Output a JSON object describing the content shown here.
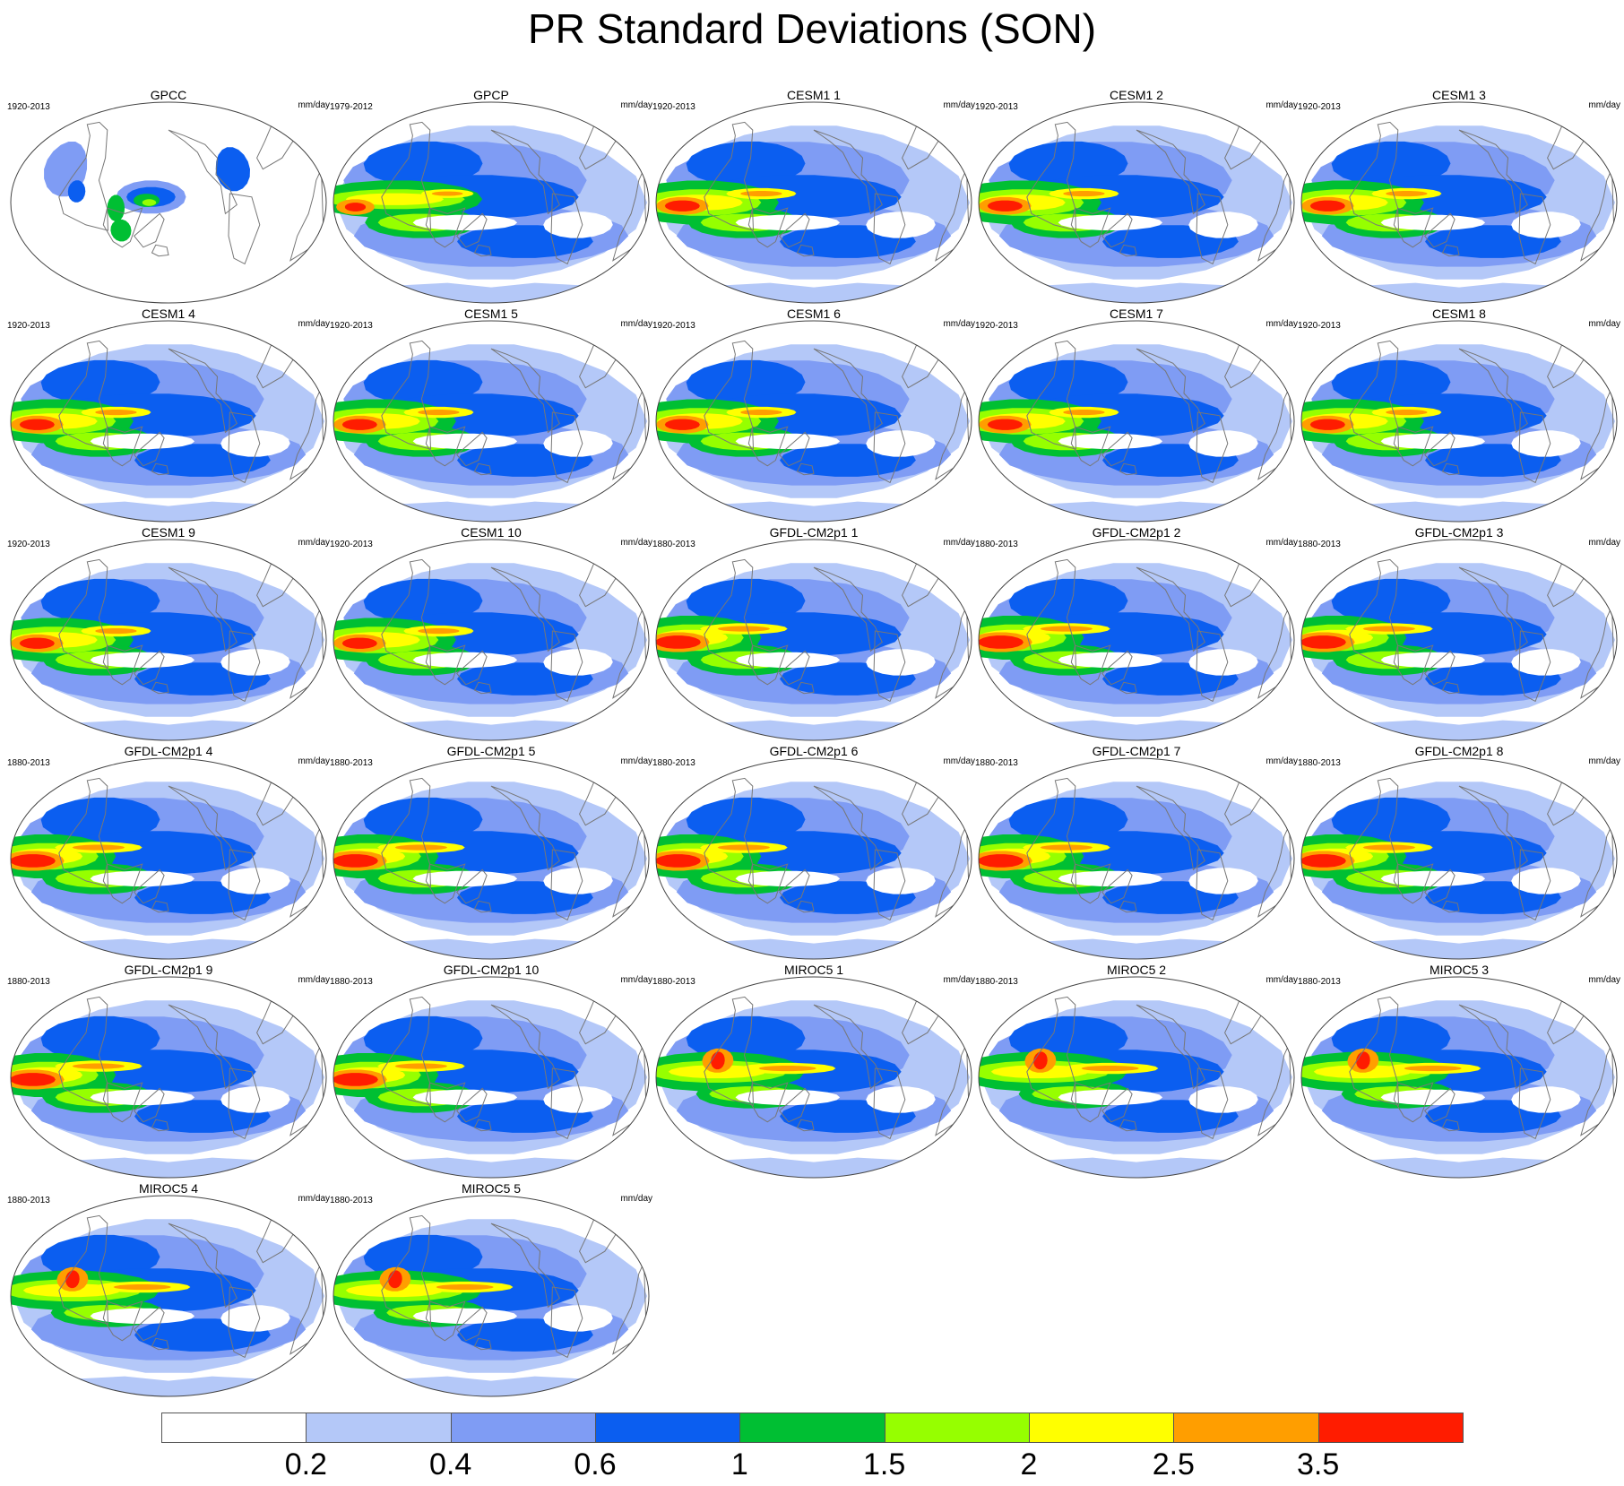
{
  "title": "PR Standard Deviations (SON)",
  "units": "mm/day",
  "colorbar": {
    "colors": [
      "#ffffff",
      "#b4c8f8",
      "#7f9cf4",
      "#0b5ef0",
      "#00bf33",
      "#96ff00",
      "#ffff00",
      "#ff9e00",
      "#ff1c00"
    ],
    "labels": [
      "0.2",
      "0.4",
      "0.6",
      "1",
      "1.5",
      "2",
      "2.5",
      "3.5"
    ]
  },
  "panels": [
    {
      "title": "GPCC",
      "period": "1920-2013",
      "kind": "land"
    },
    {
      "title": "GPCP",
      "period": "1979-2012",
      "kind": "obs"
    },
    {
      "title": "CESM1 1",
      "period": "1920-2013",
      "kind": "cesm"
    },
    {
      "title": "CESM1 2",
      "period": "1920-2013",
      "kind": "cesm"
    },
    {
      "title": "CESM1 3",
      "period": "1920-2013",
      "kind": "cesm"
    },
    {
      "title": "CESM1 4",
      "period": "1920-2013",
      "kind": "cesm"
    },
    {
      "title": "CESM1 5",
      "period": "1920-2013",
      "kind": "cesm"
    },
    {
      "title": "CESM1 6",
      "period": "1920-2013",
      "kind": "cesm"
    },
    {
      "title": "CESM1 7",
      "period": "1920-2013",
      "kind": "cesm"
    },
    {
      "title": "CESM1 8",
      "period": "1920-2013",
      "kind": "cesm"
    },
    {
      "title": "CESM1 9",
      "period": "1920-2013",
      "kind": "cesm"
    },
    {
      "title": "CESM1 10",
      "period": "1920-2013",
      "kind": "cesm"
    },
    {
      "title": "GFDL-CM2p1 1",
      "period": "1880-2013",
      "kind": "gfdl"
    },
    {
      "title": "GFDL-CM2p1 2",
      "period": "1880-2013",
      "kind": "gfdl"
    },
    {
      "title": "GFDL-CM2p1 3",
      "period": "1880-2013",
      "kind": "gfdl"
    },
    {
      "title": "GFDL-CM2p1 4",
      "period": "1880-2013",
      "kind": "gfdl"
    },
    {
      "title": "GFDL-CM2p1 5",
      "period": "1880-2013",
      "kind": "gfdl"
    },
    {
      "title": "GFDL-CM2p1 6",
      "period": "1880-2013",
      "kind": "gfdl"
    },
    {
      "title": "GFDL-CM2p1 7",
      "period": "1880-2013",
      "kind": "gfdl"
    },
    {
      "title": "GFDL-CM2p1 8",
      "period": "1880-2013",
      "kind": "gfdl"
    },
    {
      "title": "GFDL-CM2p1 9",
      "period": "1880-2013",
      "kind": "gfdl"
    },
    {
      "title": "GFDL-CM2p1 10",
      "period": "1880-2013",
      "kind": "gfdl"
    },
    {
      "title": "MIROC5 1",
      "period": "1880-2013",
      "kind": "miroc"
    },
    {
      "title": "MIROC5 2",
      "period": "1880-2013",
      "kind": "miroc"
    },
    {
      "title": "MIROC5 3",
      "period": "1880-2013",
      "kind": "miroc"
    },
    {
      "title": "MIROC5 4",
      "period": "1880-2013",
      "kind": "miroc"
    },
    {
      "title": "MIROC5 5",
      "period": "1880-2013",
      "kind": "miroc"
    }
  ]
}
